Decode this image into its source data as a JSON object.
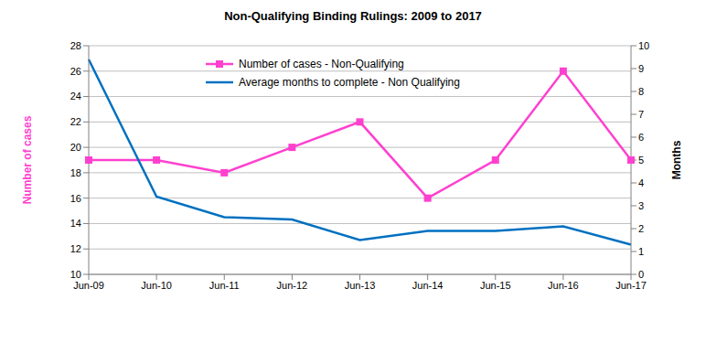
{
  "chart_data": {
    "type": "line",
    "title": "Non-Qualifying Binding Rulings: 2009 to 2017",
    "categories": [
      "Jun-09",
      "Jun-10",
      "Jun-11",
      "Jun-12",
      "Jun-13",
      "Jun-14",
      "Jun-15",
      "Jun-16",
      "Jun-17"
    ],
    "series": [
      {
        "name": "Number of cases - Non-Qualifying",
        "color": "#ff40cf",
        "marker": "square",
        "line_style": "solid",
        "values": [
          19,
          19,
          18,
          20,
          22,
          16,
          19,
          26,
          19
        ]
      },
      {
        "name": "Average months to complete - Non Qualifying",
        "color": "#0070c0",
        "marker": "none",
        "line_style": "solid",
        "axis": "y2",
        "values": [
          9.4,
          3.4,
          2.5,
          2.4,
          1.5,
          1.9,
          1.9,
          2.1,
          1.3
        ]
      }
    ],
    "y_label": "Number of cases",
    "y2_label": "Months",
    "ylim": [
      10,
      28
    ],
    "yticks": [
      10,
      12,
      14,
      16,
      18,
      20,
      22,
      24,
      26,
      28
    ],
    "y2lim": [
      0,
      10
    ],
    "y2ticks": [
      0,
      1,
      2,
      3,
      4,
      5,
      6,
      7,
      8,
      9,
      10
    ],
    "grid": true,
    "legend": "top"
  }
}
